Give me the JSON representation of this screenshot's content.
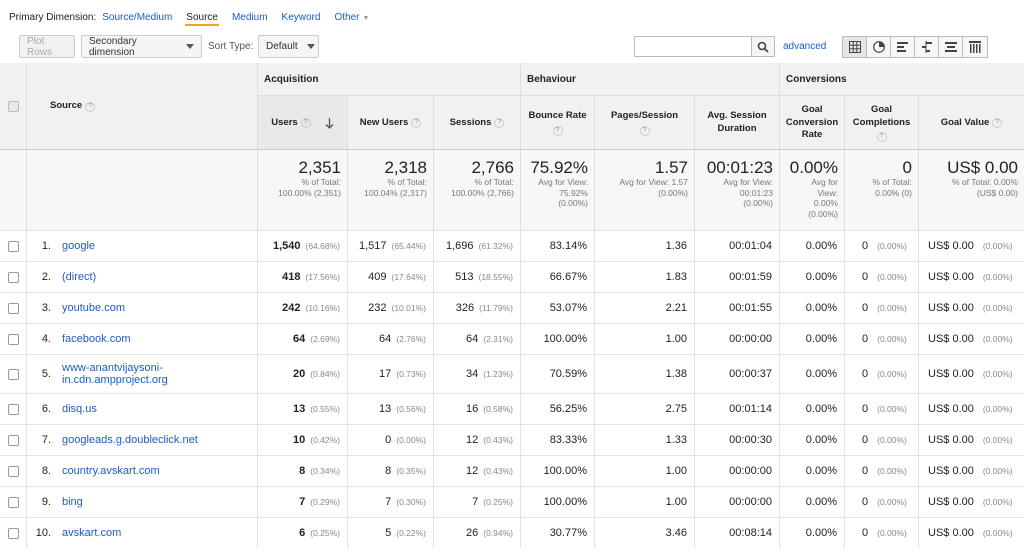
{
  "primary_dimension": {
    "label": "Primary Dimension:",
    "options": [
      "Source/Medium",
      "Source",
      "Medium",
      "Keyword"
    ],
    "active": "Source",
    "other_label": "Other"
  },
  "toolbar": {
    "plot_rows": "Plot Rows",
    "secondary_dimension": "Secondary dimension",
    "sort_type_label": "Sort Type:",
    "sort_type_value": "Default",
    "search_placeholder": "",
    "advanced": "advanced",
    "view_icons": [
      "grid-view-icon",
      "pie-view-icon",
      "bar-view-icon",
      "comparison-view-icon",
      "term-cloud-icon",
      "pivot-view-icon"
    ]
  },
  "groups": {
    "acquisition": "Acquisition",
    "behaviour": "Behaviour",
    "conversions": "Conversions"
  },
  "columns": {
    "source": "Source",
    "users": "Users",
    "new_users": "New Users",
    "sessions": "Sessions",
    "bounce_rate": "Bounce Rate",
    "pages_session": "Pages/Session",
    "avg_session_duration": "Avg. Session Duration",
    "goal_conversion_rate": "Goal Conversion Rate",
    "goal_completions": "Goal Completions",
    "goal_value": "Goal Value"
  },
  "totals": {
    "users": {
      "value": "2,351",
      "sub1": "% of Total:",
      "sub2": "100.00% (2,351)"
    },
    "new_users": {
      "value": "2,318",
      "sub1": "% of Total:",
      "sub2": "100.04% (2,317)"
    },
    "sessions": {
      "value": "2,766",
      "sub1": "% of Total:",
      "sub2": "100.00% (2,766)"
    },
    "bounce_rate": {
      "value": "75.92%",
      "sub1": "Avg for View:",
      "sub2": "75.92%",
      "sub3": "(0.00%)"
    },
    "pages_session": {
      "value": "1.57",
      "sub1": "Avg for View: 1.57",
      "sub2": "(0.00%)"
    },
    "avg_session_duration": {
      "value": "00:01:23",
      "sub1": "Avg for View:",
      "sub2": "00:01:23",
      "sub3": "(0.00%)"
    },
    "goal_conversion_rate": {
      "value": "0.00%",
      "sub1": "Avg for",
      "sub2": "View:",
      "sub3": "0.00%",
      "sub4": "(0.00%)"
    },
    "goal_completions": {
      "value": "0",
      "sub1": "% of Total:",
      "sub2": "0.00% (0)"
    },
    "goal_value": {
      "value": "US$ 0.00",
      "sub1": "% of Total: 0.00%",
      "sub2": "(US$ 0.00)"
    }
  },
  "rows": [
    {
      "idx": "1.",
      "source": "google",
      "users": "1,540",
      "users_pct": "(64.68%)",
      "new_users": "1,517",
      "new_users_pct": "(65.44%)",
      "sessions": "1,696",
      "sessions_pct": "(61.32%)",
      "bounce": "83.14%",
      "pages": "1.36",
      "duration": "00:01:04",
      "conv": "0.00%",
      "comp": "0",
      "comp_pct": "(0.00%)",
      "value": "US$ 0.00",
      "value_pct": "(0.00%)"
    },
    {
      "idx": "2.",
      "source": "(direct)",
      "users": "418",
      "users_pct": "(17.56%)",
      "new_users": "409",
      "new_users_pct": "(17.64%)",
      "sessions": "513",
      "sessions_pct": "(18.55%)",
      "bounce": "66.67%",
      "pages": "1.83",
      "duration": "00:01:59",
      "conv": "0.00%",
      "comp": "0",
      "comp_pct": "(0.00%)",
      "value": "US$ 0.00",
      "value_pct": "(0.00%)"
    },
    {
      "idx": "3.",
      "source": "youtube.com",
      "users": "242",
      "users_pct": "(10.16%)",
      "new_users": "232",
      "new_users_pct": "(10.01%)",
      "sessions": "326",
      "sessions_pct": "(11.79%)",
      "bounce": "53.07%",
      "pages": "2.21",
      "duration": "00:01:55",
      "conv": "0.00%",
      "comp": "0",
      "comp_pct": "(0.00%)",
      "value": "US$ 0.00",
      "value_pct": "(0.00%)"
    },
    {
      "idx": "4.",
      "source": "facebook.com",
      "users": "64",
      "users_pct": "(2.69%)",
      "new_users": "64",
      "new_users_pct": "(2.76%)",
      "sessions": "64",
      "sessions_pct": "(2.31%)",
      "bounce": "100.00%",
      "pages": "1.00",
      "duration": "00:00:00",
      "conv": "0.00%",
      "comp": "0",
      "comp_pct": "(0.00%)",
      "value": "US$ 0.00",
      "value_pct": "(0.00%)"
    },
    {
      "idx": "5.",
      "source": "www-anantvijaysoni-in.cdn.ampproject.org",
      "source_line1": "www-anantvijaysoni-",
      "source_line2": "in.cdn.ampproject.org",
      "users": "20",
      "users_pct": "(0.84%)",
      "new_users": "17",
      "new_users_pct": "(0.73%)",
      "sessions": "34",
      "sessions_pct": "(1.23%)",
      "bounce": "70.59%",
      "pages": "1.38",
      "duration": "00:00:37",
      "conv": "0.00%",
      "comp": "0",
      "comp_pct": "(0.00%)",
      "value": "US$ 0.00",
      "value_pct": "(0.00%)"
    },
    {
      "idx": "6.",
      "source": "disq.us",
      "users": "13",
      "users_pct": "(0.55%)",
      "new_users": "13",
      "new_users_pct": "(0.56%)",
      "sessions": "16",
      "sessions_pct": "(0.58%)",
      "bounce": "56.25%",
      "pages": "2.75",
      "duration": "00:01:14",
      "conv": "0.00%",
      "comp": "0",
      "comp_pct": "(0.00%)",
      "value": "US$ 0.00",
      "value_pct": "(0.00%)"
    },
    {
      "idx": "7.",
      "source": "googleads.g.doubleclick.net",
      "users": "10",
      "users_pct": "(0.42%)",
      "new_users": "0",
      "new_users_pct": "(0.00%)",
      "sessions": "12",
      "sessions_pct": "(0.43%)",
      "bounce": "83.33%",
      "pages": "1.33",
      "duration": "00:00:30",
      "conv": "0.00%",
      "comp": "0",
      "comp_pct": "(0.00%)",
      "value": "US$ 0.00",
      "value_pct": "(0.00%)"
    },
    {
      "idx": "8.",
      "source": "country.avskart.com",
      "users": "8",
      "users_pct": "(0.34%)",
      "new_users": "8",
      "new_users_pct": "(0.35%)",
      "sessions": "12",
      "sessions_pct": "(0.43%)",
      "bounce": "100.00%",
      "pages": "1.00",
      "duration": "00:00:00",
      "conv": "0.00%",
      "comp": "0",
      "comp_pct": "(0.00%)",
      "value": "US$ 0.00",
      "value_pct": "(0.00%)"
    },
    {
      "idx": "9.",
      "source": "bing",
      "users": "7",
      "users_pct": "(0.29%)",
      "new_users": "7",
      "new_users_pct": "(0.30%)",
      "sessions": "7",
      "sessions_pct": "(0.25%)",
      "bounce": "100.00%",
      "pages": "1.00",
      "duration": "00:00:00",
      "conv": "0.00%",
      "comp": "0",
      "comp_pct": "(0.00%)",
      "value": "US$ 0.00",
      "value_pct": "(0.00%)"
    },
    {
      "idx": "10.",
      "source": "avskart.com",
      "users": "6",
      "users_pct": "(0.25%)",
      "new_users": "5",
      "new_users_pct": "(0.22%)",
      "sessions": "26",
      "sessions_pct": "(0.94%)",
      "bounce": "30.77%",
      "pages": "3.46",
      "duration": "00:08:14",
      "conv": "0.00%",
      "comp": "0",
      "comp_pct": "(0.00%)",
      "value": "US$ 0.00",
      "value_pct": "(0.00%)"
    }
  ]
}
